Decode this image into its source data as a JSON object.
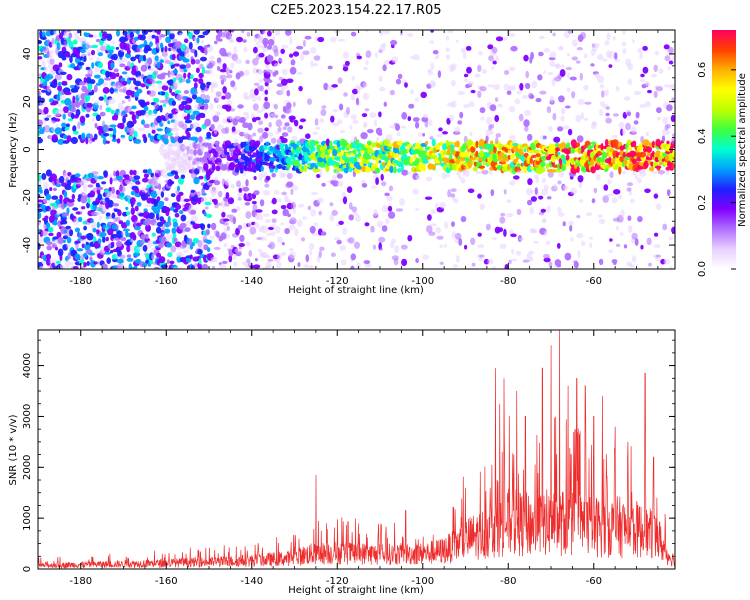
{
  "title": "C2E5.2023.154.22.17.R05",
  "colors": {
    "snr_line": "#ee2c2c",
    "colormap": [
      "#ffffff",
      "#e8d0ff",
      "#b070ff",
      "#8000ff",
      "#2020ff",
      "#00a0ff",
      "#00ffd0",
      "#40ff40",
      "#c0ff00",
      "#ffff00",
      "#ffb000",
      "#ff4000",
      "#ff0060"
    ]
  },
  "chart_data": [
    {
      "type": "heatmap",
      "xlabel": "Height of straight line (km)",
      "ylabel": "Frequency (Hz)",
      "xlim": [
        -190,
        -41
      ],
      "ylim": [
        -50,
        50
      ],
      "xticks": [
        -180,
        -160,
        -140,
        -120,
        -100,
        -80,
        -60
      ],
      "xtick_labels": [
        "-180",
        "-160",
        "-140",
        "-120",
        "-100",
        "-80",
        "-60"
      ],
      "yticks": [
        -40,
        -20,
        0,
        20,
        40
      ],
      "ytick_labels": [
        "-40",
        "-20",
        "0",
        "20",
        "40"
      ],
      "colorbar": {
        "label": "Normalized spectral amplitude",
        "range": [
          0,
          0.72
        ],
        "ticks": [
          0.0,
          0.2,
          0.4,
          0.6
        ],
        "tick_labels": [
          "0.0",
          "0.2",
          "0.4",
          "0.6"
        ]
      },
      "band_center_hz": -3,
      "band_halfwidth_hz": 6,
      "grid": false
    },
    {
      "type": "line",
      "xlabel": "Height of straight line (km)",
      "ylabel": "SNR (10 * v/v)",
      "xlim": [
        -190,
        -41
      ],
      "ylim": [
        0,
        4700
      ],
      "xticks": [
        -180,
        -160,
        -140,
        -120,
        -100,
        -80,
        -60
      ],
      "xtick_labels": [
        "-180",
        "-160",
        "-140",
        "-120",
        "-100",
        "-80",
        "-60"
      ],
      "yticks": [
        0,
        1000,
        2000,
        3000,
        4000
      ],
      "ytick_labels": [
        "0",
        "1000",
        "2000",
        "3000",
        "4000"
      ],
      "grid": false,
      "envelope": {
        "x": [
          -190,
          -180,
          -170,
          -160,
          -150,
          -145,
          -140,
          -135,
          -130,
          -127,
          -120,
          -110,
          -100,
          -96,
          -93,
          -90,
          -86,
          -83,
          -80,
          -75,
          -70,
          -65,
          -60,
          -55,
          -50,
          -45,
          -43,
          -41
        ],
        "y": [
          120,
          150,
          170,
          200,
          240,
          260,
          290,
          330,
          380,
          500,
          560,
          500,
          520,
          600,
          750,
          1000,
          1200,
          1500,
          1600,
          1500,
          1600,
          1550,
          1450,
          1450,
          1350,
          1100,
          500,
          300
        ]
      },
      "peaks": [
        {
          "x": -125,
          "y": 1850
        },
        {
          "x": -104,
          "y": 1150
        },
        {
          "x": -83,
          "y": 3950
        },
        {
          "x": -82,
          "y": 3250
        },
        {
          "x": -81,
          "y": 3750
        },
        {
          "x": -78,
          "y": 3500
        },
        {
          "x": -76,
          "y": 3000
        },
        {
          "x": -72,
          "y": 3950
        },
        {
          "x": -70,
          "y": 4400
        },
        {
          "x": -68,
          "y": 4700
        },
        {
          "x": -66,
          "y": 3600
        },
        {
          "x": -64,
          "y": 3750
        },
        {
          "x": -62,
          "y": 3600
        },
        {
          "x": -60,
          "y": 3000
        },
        {
          "x": -58,
          "y": 3400
        },
        {
          "x": -55,
          "y": 2800
        },
        {
          "x": -52,
          "y": 2500
        },
        {
          "x": -48,
          "y": 3850
        },
        {
          "x": -46,
          "y": 2200
        }
      ]
    }
  ]
}
